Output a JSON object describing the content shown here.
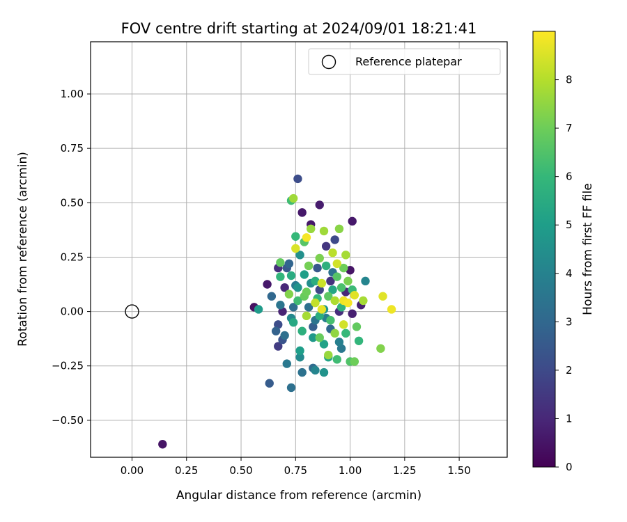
{
  "chart_data": {
    "type": "scatter",
    "title": "FOV centre drift starting at 2024/09/01 18:21:41",
    "xlabel": "Angular distance from reference (arcmin)",
    "ylabel": "Rotation from reference (arcmin)",
    "xlim": [
      -0.19,
      1.72
    ],
    "ylim": [
      -0.67,
      1.24
    ],
    "xticks": [
      0.0,
      0.25,
      0.5,
      0.75,
      1.0,
      1.25,
      1.5
    ],
    "xtick_labels": [
      "0.00",
      "0.25",
      "0.50",
      "0.75",
      "1.00",
      "1.25",
      "1.50"
    ],
    "yticks": [
      -0.5,
      -0.25,
      0.0,
      0.25,
      0.5,
      0.75,
      1.0
    ],
    "ytick_labels": [
      "−0.50",
      "−0.25",
      "0.00",
      "0.25",
      "0.50",
      "0.75",
      "1.00"
    ],
    "grid": true,
    "legend": {
      "position": "top-right",
      "entries": [
        {
          "label": "Reference platepar",
          "marker": "open-circle"
        }
      ]
    },
    "reference_point": {
      "x": 0.0,
      "y": 0.0
    },
    "colorbar": {
      "label": "Hours from first FF file",
      "colormap": "viridis",
      "range": [
        0,
        9
      ],
      "ticks": [
        0,
        1,
        2,
        3,
        4,
        5,
        6,
        7,
        8
      ],
      "tick_labels": [
        "0",
        "1",
        "2",
        "3",
        "4",
        "5",
        "6",
        "7",
        "8"
      ]
    },
    "points": [
      {
        "x": 0.14,
        "y": -0.61,
        "c": 0.5
      },
      {
        "x": 0.56,
        "y": 0.02,
        "c": 0.4
      },
      {
        "x": 0.62,
        "y": 0.125,
        "c": 0.6
      },
      {
        "x": 0.63,
        "y": -0.33,
        "c": 2.6
      },
      {
        "x": 0.64,
        "y": 0.07,
        "c": 3.0
      },
      {
        "x": 0.66,
        "y": -0.09,
        "c": 2.8
      },
      {
        "x": 0.67,
        "y": 0.2,
        "c": 1.2
      },
      {
        "x": 0.67,
        "y": -0.16,
        "c": 1.6
      },
      {
        "x": 0.67,
        "y": -0.06,
        "c": 2.1
      },
      {
        "x": 0.68,
        "y": 0.03,
        "c": 3.5
      },
      {
        "x": 0.68,
        "y": 0.16,
        "c": 5.9
      },
      {
        "x": 0.68,
        "y": 0.225,
        "c": 6.8
      },
      {
        "x": 0.69,
        "y": -0.13,
        "c": 2.3
      },
      {
        "x": 0.7,
        "y": 0.11,
        "c": 1.0
      },
      {
        "x": 0.7,
        "y": -0.11,
        "c": 3.3
      },
      {
        "x": 0.71,
        "y": 0.2,
        "c": 2.5
      },
      {
        "x": 0.71,
        "y": -0.24,
        "c": 3.6
      },
      {
        "x": 0.72,
        "y": 0.08,
        "c": 7.3
      },
      {
        "x": 0.72,
        "y": 0.22,
        "c": 2.9
      },
      {
        "x": 0.73,
        "y": -0.35,
        "c": 3.3
      },
      {
        "x": 0.73,
        "y": 0.51,
        "c": 6.2
      },
      {
        "x": 0.73,
        "y": 0.165,
        "c": 5.5
      },
      {
        "x": 0.74,
        "y": 0.02,
        "c": 3.2
      },
      {
        "x": 0.74,
        "y": 0.52,
        "c": 7.7
      },
      {
        "x": 0.75,
        "y": 0.345,
        "c": 6.0
      },
      {
        "x": 0.75,
        "y": 0.29,
        "c": 8.5
      },
      {
        "x": 0.76,
        "y": 0.61,
        "c": 2.1
      },
      {
        "x": 0.76,
        "y": 0.11,
        "c": 4.6
      },
      {
        "x": 0.77,
        "y": -0.18,
        "c": 5.0
      },
      {
        "x": 0.77,
        "y": -0.21,
        "c": 4.3
      },
      {
        "x": 0.78,
        "y": -0.28,
        "c": 3.4
      },
      {
        "x": 0.78,
        "y": 0.455,
        "c": 0.6
      },
      {
        "x": 0.79,
        "y": 0.32,
        "c": 6.6
      },
      {
        "x": 0.8,
        "y": 0.34,
        "c": 8.9
      },
      {
        "x": 0.8,
        "y": 0.09,
        "c": 7.0
      },
      {
        "x": 0.81,
        "y": 0.02,
        "c": 3.3
      },
      {
        "x": 0.82,
        "y": 0.38,
        "c": 7.6
      },
      {
        "x": 0.82,
        "y": 0.4,
        "c": 0.6
      },
      {
        "x": 0.83,
        "y": -0.26,
        "c": 3.1
      },
      {
        "x": 0.83,
        "y": -0.07,
        "c": 2.7
      },
      {
        "x": 0.84,
        "y": 0.14,
        "c": 5.6
      },
      {
        "x": 0.84,
        "y": 0.04,
        "c": 8.2
      },
      {
        "x": 0.84,
        "y": -0.27,
        "c": 4.1
      },
      {
        "x": 0.85,
        "y": 0.2,
        "c": 2.5
      },
      {
        "x": 0.86,
        "y": 0.49,
        "c": 0.7
      },
      {
        "x": 0.86,
        "y": 0.245,
        "c": 7.2
      },
      {
        "x": 0.86,
        "y": -0.12,
        "c": 6.9
      },
      {
        "x": 0.87,
        "y": 0.01,
        "c": 8.7
      },
      {
        "x": 0.88,
        "y": -0.28,
        "c": 4.6
      },
      {
        "x": 0.88,
        "y": 0.37,
        "c": 7.7
      },
      {
        "x": 0.89,
        "y": 0.3,
        "c": 1.4
      },
      {
        "x": 0.89,
        "y": -0.03,
        "c": 3.8
      },
      {
        "x": 0.9,
        "y": -0.21,
        "c": 5.2
      },
      {
        "x": 0.91,
        "y": 0.14,
        "c": 1.3
      },
      {
        "x": 0.91,
        "y": -0.08,
        "c": 3.0
      },
      {
        "x": 0.92,
        "y": 0.27,
        "c": 8.1
      },
      {
        "x": 0.93,
        "y": 0.05,
        "c": 7.9
      },
      {
        "x": 0.93,
        "y": 0.33,
        "c": 2.0
      },
      {
        "x": 0.94,
        "y": -0.22,
        "c": 6.2
      },
      {
        "x": 0.94,
        "y": 0.22,
        "c": 8.4
      },
      {
        "x": 0.95,
        "y": 0.38,
        "c": 7.4
      },
      {
        "x": 0.95,
        "y": 0.0,
        "c": 1.2
      },
      {
        "x": 0.96,
        "y": -0.17,
        "c": 3.6
      },
      {
        "x": 0.96,
        "y": 0.11,
        "c": 6.4
      },
      {
        "x": 0.97,
        "y": 0.05,
        "c": 8.8
      },
      {
        "x": 0.97,
        "y": -0.06,
        "c": 8.4
      },
      {
        "x": 0.98,
        "y": 0.26,
        "c": 7.8
      },
      {
        "x": 0.98,
        "y": 0.09,
        "c": 1.0
      },
      {
        "x": 0.99,
        "y": 0.04,
        "c": 8.9
      },
      {
        "x": 1.0,
        "y": 0.19,
        "c": 0.5
      },
      {
        "x": 1.0,
        "y": -0.23,
        "c": 6.5
      },
      {
        "x": 1.01,
        "y": 0.1,
        "c": 6.1
      },
      {
        "x": 1.01,
        "y": -0.01,
        "c": 0.8
      },
      {
        "x": 1.01,
        "y": 0.415,
        "c": 0.6
      },
      {
        "x": 1.02,
        "y": 0.075,
        "c": 8.6
      },
      {
        "x": 1.02,
        "y": -0.23,
        "c": 7.0
      },
      {
        "x": 1.03,
        "y": -0.07,
        "c": 6.8
      },
      {
        "x": 1.04,
        "y": -0.135,
        "c": 5.9
      },
      {
        "x": 1.05,
        "y": 0.03,
        "c": 0.8
      },
      {
        "x": 1.06,
        "y": 0.05,
        "c": 7.8
      },
      {
        "x": 1.07,
        "y": 0.14,
        "c": 4.1
      },
      {
        "x": 1.14,
        "y": -0.17,
        "c": 7.3
      },
      {
        "x": 1.15,
        "y": 0.07,
        "c": 8.6
      },
      {
        "x": 1.19,
        "y": 0.01,
        "c": 8.8
      },
      {
        "x": 0.58,
        "y": 0.01,
        "c": 4.9
      },
      {
        "x": 0.69,
        "y": 0.0,
        "c": 0.9
      },
      {
        "x": 0.74,
        "y": -0.05,
        "c": 5.4
      },
      {
        "x": 0.76,
        "y": 0.05,
        "c": 6.2
      },
      {
        "x": 0.78,
        "y": -0.09,
        "c": 5.7
      },
      {
        "x": 0.79,
        "y": 0.17,
        "c": 5.0
      },
      {
        "x": 0.8,
        "y": -0.02,
        "c": 7.8
      },
      {
        "x": 0.81,
        "y": 0.21,
        "c": 7.1
      },
      {
        "x": 0.82,
        "y": 0.13,
        "c": 4.4
      },
      {
        "x": 0.83,
        "y": -0.12,
        "c": 4.8
      },
      {
        "x": 0.85,
        "y": 0.06,
        "c": 6.0
      },
      {
        "x": 0.86,
        "y": -0.02,
        "c": 5.6
      },
      {
        "x": 0.87,
        "y": 0.13,
        "c": 8.3
      },
      {
        "x": 0.88,
        "y": -0.15,
        "c": 5.1
      },
      {
        "x": 0.89,
        "y": 0.21,
        "c": 5.7
      },
      {
        "x": 0.9,
        "y": 0.07,
        "c": 6.7
      },
      {
        "x": 0.91,
        "y": -0.04,
        "c": 6.3
      },
      {
        "x": 0.92,
        "y": 0.1,
        "c": 5.3
      },
      {
        "x": 0.93,
        "y": -0.1,
        "c": 7.5
      },
      {
        "x": 0.94,
        "y": 0.16,
        "c": 6.6
      },
      {
        "x": 0.95,
        "y": -0.14,
        "c": 3.9
      },
      {
        "x": 0.96,
        "y": 0.02,
        "c": 5.8
      },
      {
        "x": 0.98,
        "y": -0.1,
        "c": 6.0
      },
      {
        "x": 0.99,
        "y": 0.14,
        "c": 7.2
      },
      {
        "x": 0.75,
        "y": 0.12,
        "c": 3.7
      },
      {
        "x": 0.73,
        "y": -0.03,
        "c": 4.2
      },
      {
        "x": 0.77,
        "y": 0.26,
        "c": 4.5
      },
      {
        "x": 0.79,
        "y": 0.07,
        "c": 6.9
      },
      {
        "x": 0.84,
        "y": -0.04,
        "c": 3.5
      },
      {
        "x": 0.86,
        "y": 0.1,
        "c": 1.9
      },
      {
        "x": 0.88,
        "y": 0.01,
        "c": 4.7
      },
      {
        "x": 0.9,
        "y": -0.2,
        "c": 7.6
      },
      {
        "x": 0.92,
        "y": 0.18,
        "c": 3.4
      },
      {
        "x": 0.97,
        "y": 0.2,
        "c": 7.0
      }
    ]
  }
}
